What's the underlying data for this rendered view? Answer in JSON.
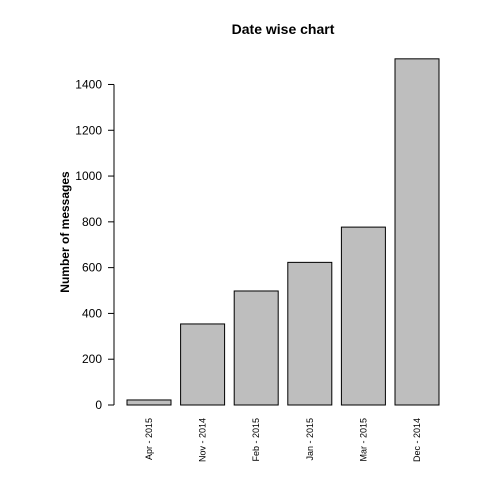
{
  "chart_data": {
    "type": "bar",
    "title": "Date wise chart",
    "xlabel": "",
    "ylabel": "Number of messages",
    "categories": [
      "Apr - 2015",
      "Nov - 2014",
      "Feb - 2015",
      "Jan - 2015",
      "Mar - 2015",
      "Dec - 2014"
    ],
    "values": [
      22,
      354,
      498,
      623,
      777,
      1512
    ],
    "ylim": [
      0,
      1520
    ],
    "yticks": [
      0,
      200,
      400,
      600,
      800,
      1000,
      1200,
      1400
    ],
    "grid": false,
    "legend": "none",
    "colors": {
      "bar_fill": "#bebebe",
      "bar_stroke": "#000000",
      "axis": "#000000",
      "background": "#ffffff"
    }
  }
}
